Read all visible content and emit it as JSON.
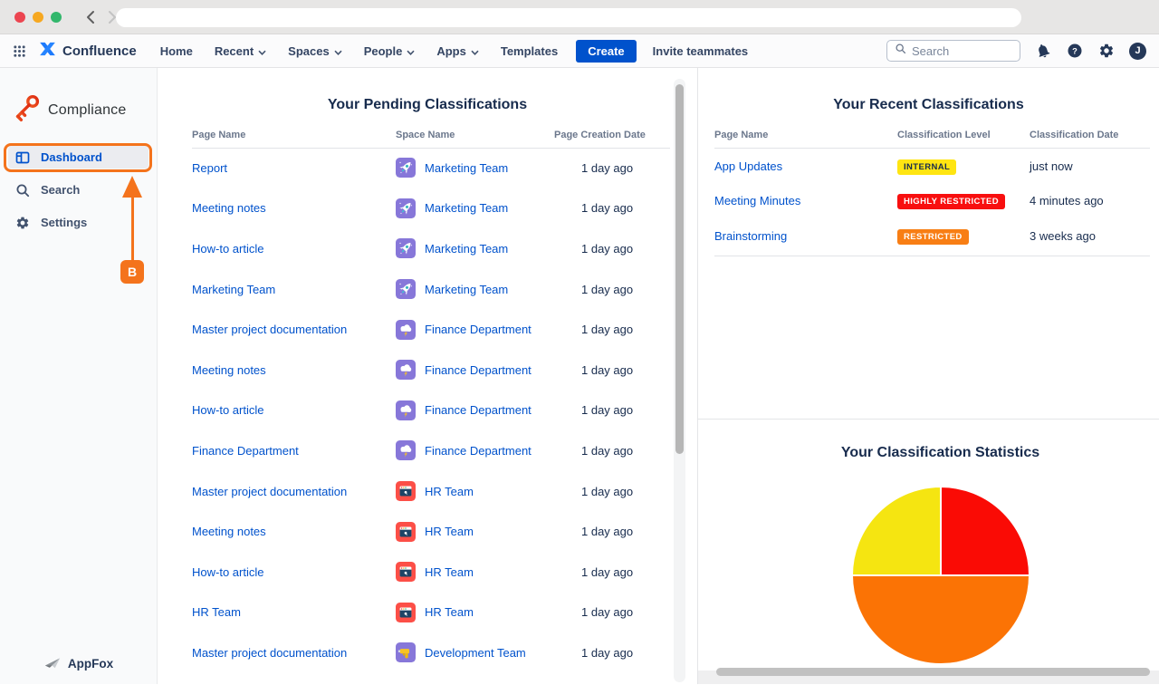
{
  "browser": {
    "back_enabled": true,
    "forward_enabled": false,
    "address_value": ""
  },
  "nav": {
    "product": "Confluence",
    "items": [
      {
        "label": "Home",
        "dropdown": false
      },
      {
        "label": "Recent",
        "dropdown": true
      },
      {
        "label": "Spaces",
        "dropdown": true
      },
      {
        "label": "People",
        "dropdown": true
      },
      {
        "label": "Apps",
        "dropdown": true
      },
      {
        "label": "Templates",
        "dropdown": false
      }
    ],
    "create_label": "Create",
    "invite_label": "Invite teammates",
    "search_placeholder": "Search",
    "avatar_initial": "J"
  },
  "sidebar": {
    "app_name": "Compliance",
    "items": [
      {
        "label": "Dashboard",
        "icon": "dashboard-icon",
        "selected": true
      },
      {
        "label": "Search",
        "icon": "search-icon",
        "selected": false
      },
      {
        "label": "Settings",
        "icon": "settings-icon",
        "selected": false
      }
    ],
    "annotation_label": "B",
    "footer_brand": "AppFox"
  },
  "pending": {
    "title": "Your Pending Classifications",
    "columns": [
      "Page Name",
      "Space Name",
      "Page Creation Date"
    ],
    "rows": [
      {
        "page": "Report",
        "space": "Marketing Team",
        "space_icon": "rocket-space-icon",
        "date": "1 day ago"
      },
      {
        "page": "Meeting notes",
        "space": "Marketing Team",
        "space_icon": "rocket-space-icon",
        "date": "1 day ago"
      },
      {
        "page": "How-to article",
        "space": "Marketing Team",
        "space_icon": "rocket-space-icon",
        "date": "1 day ago"
      },
      {
        "page": "Marketing Team",
        "space": "Marketing Team",
        "space_icon": "rocket-space-icon",
        "date": "1 day ago"
      },
      {
        "page": "Master project documentation",
        "space": "Finance Department",
        "space_icon": "storm-space-icon",
        "date": "1 day ago"
      },
      {
        "page": "Meeting notes",
        "space": "Finance Department",
        "space_icon": "storm-space-icon",
        "date": "1 day ago"
      },
      {
        "page": "How-to article",
        "space": "Finance Department",
        "space_icon": "storm-space-icon",
        "date": "1 day ago"
      },
      {
        "page": "Finance Department",
        "space": "Finance Department",
        "space_icon": "storm-space-icon",
        "date": "1 day ago"
      },
      {
        "page": "Master project documentation",
        "space": "HR Team",
        "space_icon": "window-space-icon",
        "date": "1 day ago"
      },
      {
        "page": "Meeting notes",
        "space": "HR Team",
        "space_icon": "window-space-icon",
        "date": "1 day ago"
      },
      {
        "page": "How-to article",
        "space": "HR Team",
        "space_icon": "window-space-icon",
        "date": "1 day ago"
      },
      {
        "page": "HR Team",
        "space": "HR Team",
        "space_icon": "window-space-icon",
        "date": "1 day ago"
      },
      {
        "page": "Master project documentation",
        "space": "Development Team",
        "space_icon": "drill-space-icon",
        "date": "1 day ago"
      }
    ]
  },
  "recent": {
    "title": "Your Recent Classifications",
    "columns": [
      "Page Name",
      "Classification Level",
      "Classification Date"
    ],
    "rows": [
      {
        "page": "App Updates",
        "level": "INTERNAL",
        "level_bg": "#FFE512",
        "level_color": "#172B4D",
        "date": "just now"
      },
      {
        "page": "Meeting Minutes",
        "level": "HIGHLY RESTRICTED",
        "level_bg": "#F80F0F",
        "level_color": "#FFFFFF",
        "date": "4 minutes ago"
      },
      {
        "page": "Brainstorming",
        "level": "RESTRICTED",
        "level_bg": "#F87E14",
        "level_color": "#FFFFFF",
        "date": "3 weeks ago"
      }
    ]
  },
  "chart_data": {
    "type": "pie",
    "title": "Your Classification Statistics",
    "slices": [
      {
        "label": "red",
        "value": 25,
        "color": "#FA0B05"
      },
      {
        "label": "orange",
        "value": 50,
        "color": "#FB7305"
      },
      {
        "label": "yellow",
        "value": 25,
        "color": "#F5E511"
      }
    ],
    "start_angle_deg": -90,
    "legend": "none"
  },
  "colors": {
    "link_blue": "#0052CC",
    "title_navy": "#172B4D",
    "annotation_orange": "#F4731C"
  }
}
